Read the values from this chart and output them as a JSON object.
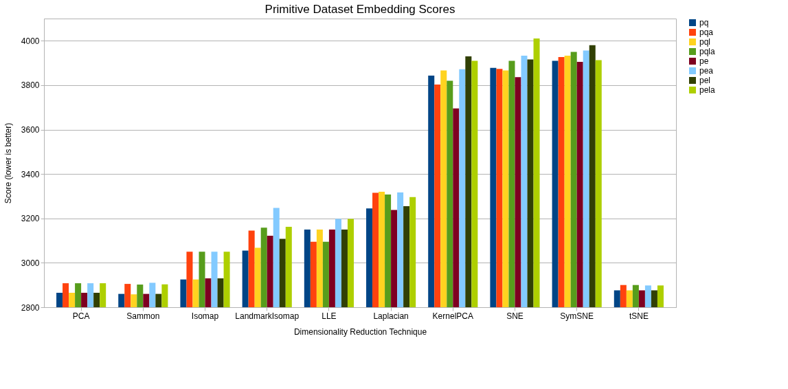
{
  "chart_data": {
    "type": "bar",
    "title": "Primitive Dataset Embedding Scores",
    "xlabel": "Dimensionality Reduction Technique",
    "ylabel": "Score (lower is better)",
    "categories": [
      "PCA",
      "Sammon",
      "Isomap",
      "LandmarkIsomap",
      "LLE",
      "Laplacian",
      "KernelPCA",
      "SNE",
      "SymSNE",
      "tSNE"
    ],
    "series": [
      {
        "name": "pq",
        "color": "#004586",
        "values": [
          2865,
          2860,
          2925,
          3055,
          3150,
          3245,
          3843,
          3878,
          3910,
          2876
        ]
      },
      {
        "name": "pqa",
        "color": "#ff420e",
        "values": [
          2908,
          2905,
          3050,
          3145,
          3095,
          3315,
          3803,
          3873,
          3927,
          2900
        ]
      },
      {
        "name": "pql",
        "color": "#ffd320",
        "values": [
          2865,
          2858,
          2925,
          3068,
          3150,
          3320,
          3866,
          3866,
          3933,
          2876
        ]
      },
      {
        "name": "pqla",
        "color": "#579d1c",
        "values": [
          2908,
          2902,
          3050,
          3158,
          3095,
          3308,
          3820,
          3910,
          3950,
          2900
        ]
      },
      {
        "name": "pe",
        "color": "#7e0021",
        "values": [
          2865,
          2860,
          2930,
          3122,
          3150,
          3238,
          3695,
          3836,
          3905,
          2876
        ]
      },
      {
        "name": "pea",
        "color": "#83caff",
        "values": [
          2908,
          2910,
          3050,
          3247,
          3198,
          3317,
          3872,
          3933,
          3956,
          2898
        ]
      },
      {
        "name": "pel",
        "color": "#314004",
        "values": [
          2865,
          2860,
          2930,
          3108,
          3150,
          3255,
          3930,
          3916,
          3980,
          2876
        ]
      },
      {
        "name": "pela",
        "color": "#aecf00",
        "values": [
          2908,
          2903,
          3050,
          3162,
          3198,
          3296,
          3910,
          4010,
          3913,
          2898
        ]
      }
    ],
    "ylim": [
      2800,
      4100
    ],
    "yticks": [
      2800,
      3000,
      3200,
      3400,
      3600,
      3800,
      4000
    ],
    "grid": "y",
    "legend": "right"
  }
}
